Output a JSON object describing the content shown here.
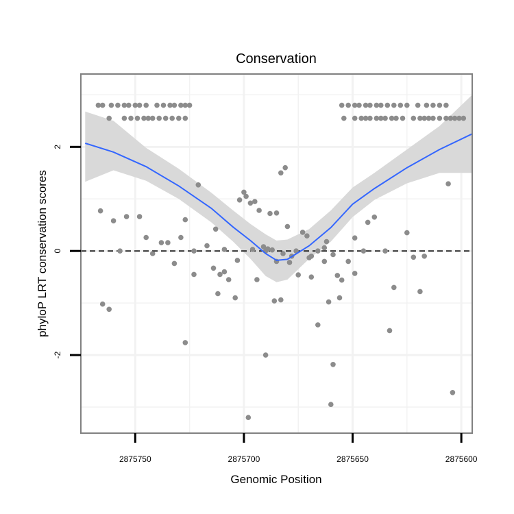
{
  "chart_data": {
    "type": "scatter",
    "title": "Conservation",
    "xlabel": "Genomic Position",
    "ylabel": "phyloP LRT conservation scores",
    "x_reversed": true,
    "xlim": [
      2875775,
      2875595
    ],
    "ylim": [
      -3.5,
      3.4
    ],
    "x_ticks": [
      2875750,
      2875700,
      2875650,
      2875600
    ],
    "x_tick_labels": [
      "2875750",
      "2875700",
      "2875650",
      "2875600"
    ],
    "y_ticks": [
      2,
      0,
      -2
    ],
    "y_tick_labels": [
      "2",
      "0",
      "-2"
    ],
    "reference_line": {
      "y": 0,
      "style": "dashed"
    },
    "grid": true,
    "colors": {
      "points": "#8c8c8c",
      "smooth": "#3366ff",
      "band": "#d9d9d9",
      "panel_border": "#808080"
    },
    "series": [
      {
        "values": [
          [
            2875767,
            2.8
          ],
          [
            2875765,
            2.8
          ],
          [
            2875761,
            2.8
          ],
          [
            2875758,
            2.8
          ],
          [
            2875755,
            2.8
          ],
          [
            2875753,
            2.8
          ],
          [
            2875750,
            2.8
          ],
          [
            2875748,
            2.8
          ],
          [
            2875745,
            2.8
          ],
          [
            2875740,
            2.8
          ],
          [
            2875737,
            2.8
          ],
          [
            2875734,
            2.8
          ],
          [
            2875732,
            2.8
          ],
          [
            2875729,
            2.8
          ],
          [
            2875727,
            2.8
          ],
          [
            2875725,
            2.8
          ],
          [
            2875762,
            2.55
          ],
          [
            2875755,
            2.55
          ],
          [
            2875752,
            2.55
          ],
          [
            2875749,
            2.55
          ],
          [
            2875746,
            2.55
          ],
          [
            2875744,
            2.55
          ],
          [
            2875742,
            2.55
          ],
          [
            2875739,
            2.55
          ],
          [
            2875736,
            2.55
          ],
          [
            2875733,
            2.55
          ],
          [
            2875730,
            2.55
          ],
          [
            2875727,
            2.55
          ],
          [
            2875655,
            2.8
          ],
          [
            2875652,
            2.8
          ],
          [
            2875649,
            2.8
          ],
          [
            2875647,
            2.8
          ],
          [
            2875644,
            2.8
          ],
          [
            2875642,
            2.8
          ],
          [
            2875639,
            2.8
          ],
          [
            2875637,
            2.8
          ],
          [
            2875634,
            2.8
          ],
          [
            2875631,
            2.8
          ],
          [
            2875628,
            2.8
          ],
          [
            2875625,
            2.8
          ],
          [
            2875620,
            2.8
          ],
          [
            2875616,
            2.8
          ],
          [
            2875613,
            2.8
          ],
          [
            2875610,
            2.8
          ],
          [
            2875607,
            2.8
          ],
          [
            2875654,
            2.55
          ],
          [
            2875649,
            2.55
          ],
          [
            2875646,
            2.55
          ],
          [
            2875644,
            2.55
          ],
          [
            2875642,
            2.55
          ],
          [
            2875639,
            2.55
          ],
          [
            2875637,
            2.55
          ],
          [
            2875635,
            2.55
          ],
          [
            2875632,
            2.55
          ],
          [
            2875630,
            2.55
          ],
          [
            2875627,
            2.55
          ],
          [
            2875622,
            2.55
          ],
          [
            2875619,
            2.55
          ],
          [
            2875617,
            2.55
          ],
          [
            2875615,
            2.55
          ],
          [
            2875613,
            2.55
          ],
          [
            2875610,
            2.55
          ],
          [
            2875607,
            2.55
          ],
          [
            2875605,
            2.55
          ],
          [
            2875603,
            2.55
          ],
          [
            2875601,
            2.55
          ],
          [
            2875599,
            2.55
          ],
          [
            2875766,
            0.77
          ],
          [
            2875760,
            0.58
          ],
          [
            2875754,
            0.66
          ],
          [
            2875748,
            0.66
          ],
          [
            2875738,
            0.16
          ],
          [
            2875735,
            0.16
          ],
          [
            2875732,
            -0.24
          ],
          [
            2875745,
            0.26
          ],
          [
            2875742,
            -0.05
          ],
          [
            2875757,
            0.0
          ],
          [
            2875729,
            0.26
          ],
          [
            2875727,
            0.6
          ],
          [
            2875723,
            -0.45
          ],
          [
            2875721,
            1.27
          ],
          [
            2875765,
            -1.02
          ],
          [
            2875762,
            -1.12
          ],
          [
            2875714,
            -0.33
          ],
          [
            2875711,
            -0.45
          ],
          [
            2875712,
            -0.82
          ],
          [
            2875709,
            -0.4
          ],
          [
            2875707,
            -0.55
          ],
          [
            2875713,
            0.42
          ],
          [
            2875709,
            0.03
          ],
          [
            2875704,
            -0.9
          ],
          [
            2875703,
            -0.18
          ],
          [
            2875702,
            0.98
          ],
          [
            2875700,
            1.13
          ],
          [
            2875699,
            1.05
          ],
          [
            2875695,
            0.95
          ],
          [
            2875697,
            0.92
          ],
          [
            2875693,
            0.78
          ],
          [
            2875685,
            0.73
          ],
          [
            2875688,
            0.72
          ],
          [
            2875687,
            0.02
          ],
          [
            2875689,
            0.04
          ],
          [
            2875691,
            0.08
          ],
          [
            2875690,
            0.0
          ],
          [
            2875694,
            -0.55
          ],
          [
            2875683,
            1.5
          ],
          [
            2875681,
            1.6
          ],
          [
            2875680,
            0.47
          ],
          [
            2875676,
            0.0
          ],
          [
            2875675,
            -0.46
          ],
          [
            2875678,
            -0.1
          ],
          [
            2875686,
            -0.96
          ],
          [
            2875683,
            -0.94
          ],
          [
            2875685,
            -0.2
          ],
          [
            2875682,
            -0.05
          ],
          [
            2875679,
            -0.22
          ],
          [
            2875673,
            0.36
          ],
          [
            2875671,
            0.29
          ],
          [
            2875669,
            -0.1
          ],
          [
            2875669,
            -0.5
          ],
          [
            2875666,
            -1.42
          ],
          [
            2875663,
            -0.2
          ],
          [
            2875662,
            0.18
          ],
          [
            2875659,
            -0.07
          ],
          [
            2875657,
            -0.47
          ],
          [
            2875655,
            -0.56
          ],
          [
            2875661,
            -0.98
          ],
          [
            2875656,
            -0.9
          ],
          [
            2875663,
            0.06
          ],
          [
            2875670,
            -0.13
          ],
          [
            2875666,
            0.0
          ],
          [
            2875652,
            -0.2
          ],
          [
            2875649,
            0.25
          ],
          [
            2875645,
            0.0
          ],
          [
            2875649,
            -0.43
          ],
          [
            2875643,
            0.55
          ],
          [
            2875640,
            0.65
          ],
          [
            2875635,
            0.0
          ],
          [
            2875633,
            -1.53
          ],
          [
            2875631,
            -0.7
          ],
          [
            2875625,
            0.35
          ],
          [
            2875622,
            -0.12
          ],
          [
            2875619,
            -0.78
          ],
          [
            2875617,
            -0.1
          ],
          [
            2875606,
            1.29
          ],
          [
            2875604,
            -2.72
          ],
          [
            2875727,
            -1.76
          ],
          [
            2875690,
            -2.0
          ],
          [
            2875698,
            -3.2
          ],
          [
            2875660,
            -2.95
          ],
          [
            2875659,
            -2.18
          ],
          [
            2875723,
            0.0
          ],
          [
            2875717,
            0.1
          ],
          [
            2875696,
            0.03
          ]
        ]
      }
    ],
    "smooth": {
      "x": [
        2875773,
        2875760,
        2875745,
        2875730,
        2875715,
        2875705,
        2875697,
        2875690,
        2875685,
        2875680,
        2875670,
        2875660,
        2875650,
        2875640,
        2875625,
        2875610,
        2875595
      ],
      "y": [
        2.07,
        1.9,
        1.62,
        1.25,
        0.82,
        0.46,
        0.2,
        -0.05,
        -0.18,
        -0.16,
        0.1,
        0.45,
        0.9,
        1.2,
        1.6,
        1.95,
        2.25
      ],
      "lower": [
        1.33,
        1.55,
        1.35,
        1.0,
        0.55,
        0.18,
        -0.15,
        -0.48,
        -0.6,
        -0.55,
        -0.15,
        0.18,
        0.65,
        0.98,
        1.3,
        1.5,
        1.5
      ],
      "upper": [
        2.68,
        2.5,
        1.98,
        1.58,
        1.12,
        0.78,
        0.52,
        0.32,
        0.2,
        0.22,
        0.42,
        0.78,
        1.22,
        1.5,
        1.95,
        2.4,
        3.0
      ]
    }
  }
}
